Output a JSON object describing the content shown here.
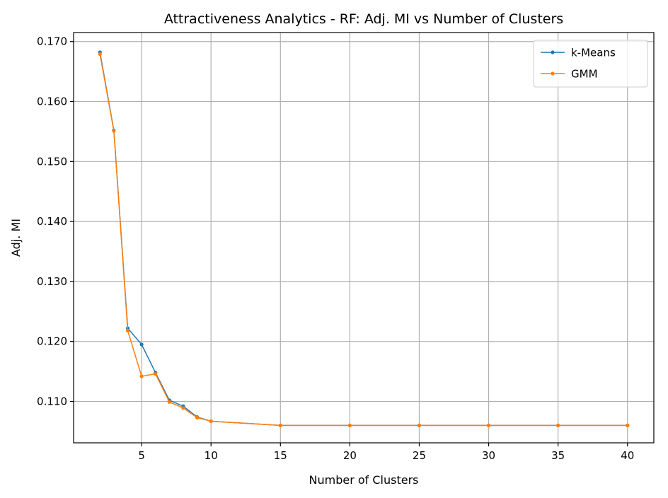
{
  "chart_data": {
    "type": "line",
    "title": "Attractiveness Analytics - RF: Adj. MI vs Number of Clusters",
    "xlabel": "Number of Clusters",
    "ylabel": "Adj. MI",
    "xlim": [
      0.1,
      41.9
    ],
    "ylim": [
      0.1031,
      0.1715
    ],
    "xticks": [
      5,
      10,
      15,
      20,
      25,
      30,
      35,
      40
    ],
    "yticks": [
      0.11,
      0.12,
      0.13,
      0.14,
      0.15,
      0.16,
      0.17
    ],
    "ytick_labels": [
      "0.110",
      "0.120",
      "0.130",
      "0.140",
      "0.150",
      "0.160",
      "0.170"
    ],
    "grid": true,
    "legend_position": "top-right",
    "x": [
      2,
      3,
      4,
      5,
      6,
      7,
      8,
      9,
      10,
      15,
      20,
      25,
      30,
      35,
      40
    ],
    "series": [
      {
        "name": "k-Means",
        "color": "#1f77b4",
        "values": [
          0.1682,
          0.1552,
          0.1222,
          0.1195,
          0.1148,
          0.1102,
          0.1092,
          0.1074,
          0.1067,
          0.106,
          0.106,
          0.106,
          0.106,
          0.106,
          0.106
        ]
      },
      {
        "name": "GMM",
        "color": "#ff7f0e",
        "values": [
          0.1679,
          0.1551,
          0.1218,
          0.1142,
          0.1146,
          0.1099,
          0.1089,
          0.1073,
          0.1067,
          0.106,
          0.106,
          0.106,
          0.106,
          0.106,
          0.106
        ]
      }
    ]
  }
}
